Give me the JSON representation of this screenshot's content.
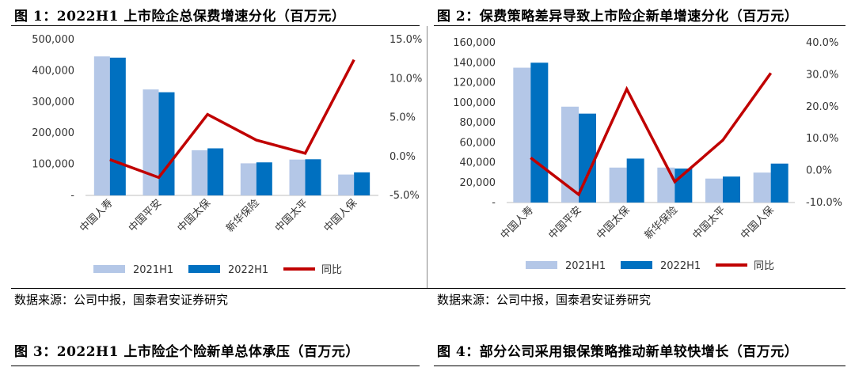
{
  "figures": [
    {
      "title": "图 1：2022H1 上市险企总保费增速分化（百万元）",
      "source": "数据来源：公司中报，国泰君安证券研究"
    },
    {
      "title": "图 2：保费策略差异导致上市险企新单增速分化（百万元）",
      "source": "数据来源：公司中报，国泰君安证券研究"
    },
    {
      "title": "图 3：2022H1 上市险企个险新单总体承压（百万元）"
    },
    {
      "title": "图 4：部分公司采用银保策略推动新单较快增长（百万元）"
    }
  ],
  "colors": {
    "h2021": "#b4c7e7",
    "h2022": "#0070c0",
    "yoy": "#c00000"
  },
  "chart_data": [
    {
      "type": "bar",
      "categories": [
        "中国人寿",
        "中国平安",
        "中国太保",
        "新华保险",
        "中国太平",
        "中国人保"
      ],
      "series": [
        {
          "name": "2021H1",
          "axis": "left",
          "values": [
            446000,
            340000,
            145000,
            103000,
            115000,
            67000
          ]
        },
        {
          "name": "2022H1",
          "axis": "left",
          "values": [
            442000,
            331000,
            151000,
            106000,
            116000,
            74000
          ]
        },
        {
          "name": "同比",
          "axis": "right",
          "type": "line",
          "values": [
            -0.4,
            -2.7,
            5.4,
            2.1,
            0.4,
            12.4
          ]
        }
      ],
      "left_ticks": [
        "-",
        "100,000",
        "200,000",
        "300,000",
        "400,000",
        "500,000"
      ],
      "right_ticks": [
        "-5.0%",
        "0.0%",
        "5.0%",
        "10.0%",
        "15.0%"
      ],
      "ylim": [
        0,
        500000
      ],
      "y2lim": [
        -5,
        15
      ],
      "legend": "bottom"
    },
    {
      "type": "bar",
      "categories": [
        "中国人寿",
        "中国平安",
        "中国太保",
        "新华保险",
        "中国太平",
        "中国人保"
      ],
      "series": [
        {
          "name": "2021H1",
          "axis": "left",
          "values": [
            135000,
            96000,
            35000,
            35000,
            24000,
            30000
          ]
        },
        {
          "name": "2022H1",
          "axis": "left",
          "values": [
            140000,
            89000,
            44000,
            34000,
            26000,
            39000
          ]
        },
        {
          "name": "同比",
          "axis": "right",
          "type": "line",
          "values": [
            4.0,
            -7.5,
            25.5,
            -3.5,
            9.5,
            30.5
          ]
        }
      ],
      "left_ticks": [
        "-",
        "20,000",
        "40,000",
        "60,000",
        "80,000",
        "100,000",
        "120,000",
        "140,000",
        "160,000"
      ],
      "right_ticks": [
        "-10.0%",
        "0.0%",
        "10.0%",
        "20.0%",
        "30.0%",
        "40.0%"
      ],
      "ylim": [
        0,
        160000
      ],
      "y2lim": [
        -10,
        40
      ],
      "legend": "bottom"
    }
  ]
}
